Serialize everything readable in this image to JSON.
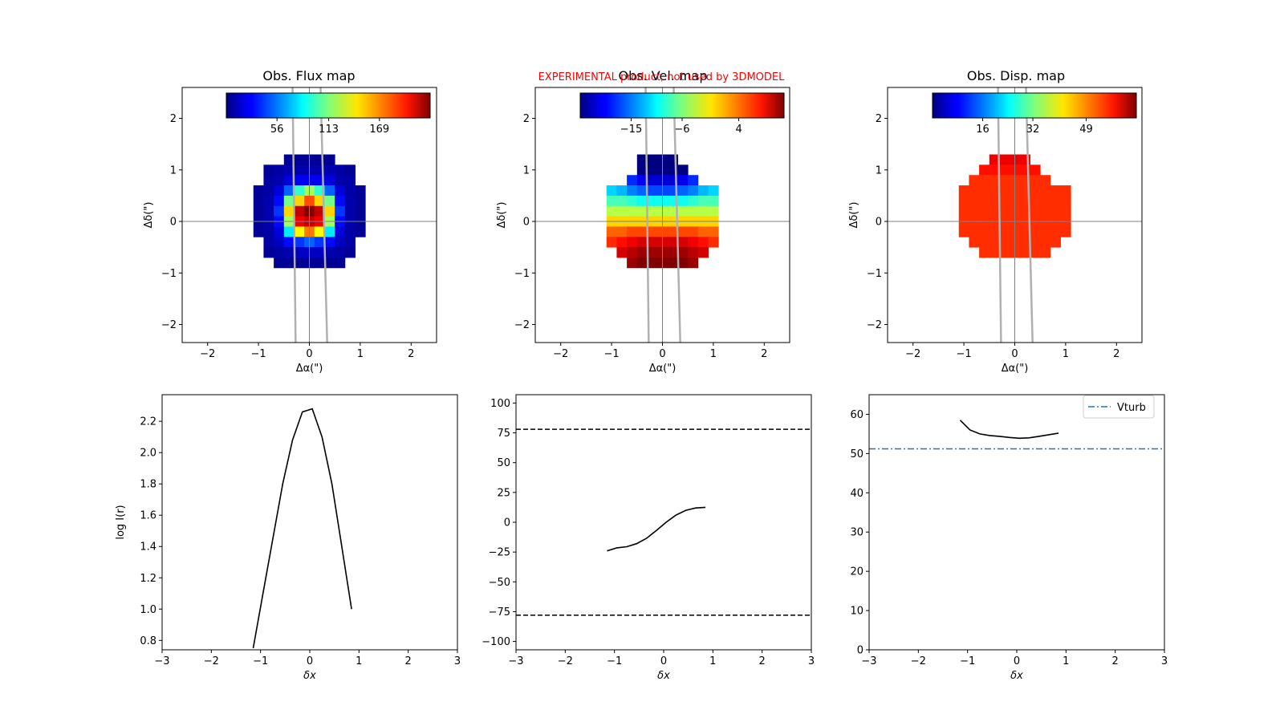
{
  "watermark": {
    "text": "EXPERIMENTAL product, not used by 3DMODEL",
    "color": "#ff0000"
  },
  "colors": {
    "frame": "#000000",
    "line": "#000000",
    "slit": "#b0b0b0",
    "crosshair": "#808080",
    "vturb": "#1f77b4"
  },
  "colormap": "jet",
  "maps": [
    {
      "title": "Obs. Flux map",
      "xlabel": "Δα(\")",
      "ylabel": "Δδ(\")",
      "xticks": [
        "−2",
        "−1",
        "0",
        "1",
        "2"
      ],
      "yticks": [
        "2",
        "1",
        "0",
        "−1",
        "−2"
      ],
      "colorbar_ticks": [
        "56",
        "113",
        "169"
      ],
      "colorbar_range": [
        0,
        225
      ],
      "rows": [
        [
          null,
          null,
          null,
          null,
          null,
          null,
          null,
          null,
          null,
          null,
          null
        ],
        [
          null,
          null,
          null,
          null,
          null,
          null,
          null,
          null,
          null,
          null,
          null
        ],
        [
          null,
          null,
          null,
          null,
          null,
          null,
          null,
          null,
          null,
          null,
          null
        ],
        [
          null,
          null,
          null,
          null,
          null,
          null,
          null,
          null,
          null,
          null,
          null
        ],
        [
          null,
          null,
          null,
          null,
          null,
          null,
          null,
          null,
          null,
          null,
          null
        ],
        [
          null,
          null,
          null,
          null,
          null,
          null,
          null,
          null,
          null,
          null,
          null
        ],
        [
          null,
          null,
          null,
          null,
          null,
          null,
          null,
          null,
          null,
          null,
          null
        ],
        [
          null,
          null,
          null,
          null,
          null,
          null,
          null,
          null,
          null,
          null,
          null
        ],
        [
          null,
          null,
          null,
          null,
          null,
          null,
          null,
          null,
          null,
          null,
          null
        ],
        [
          null,
          null,
          null,
          null,
          null,
          null,
          null,
          null,
          null,
          null,
          null
        ],
        [
          null,
          null,
          null,
          null,
          null,
          null,
          null,
          null,
          null,
          null,
          null
        ],
        [
          null,
          null,
          null,
          null,
          null,
          null,
          null,
          null,
          null,
          null,
          null
        ],
        [
          null,
          null,
          null,
          null,
          null,
          null,
          null,
          null,
          null,
          null,
          null
        ],
        [
          null,
          null,
          null,
          null,
          null,
          null,
          null,
          null,
          null,
          null,
          null
        ],
        [
          null,
          null,
          null,
          null,
          null,
          null,
          null,
          null,
          null,
          null,
          null
        ],
        [
          null,
          null,
          null,
          null,
          null,
          null,
          null,
          null,
          null,
          null,
          null
        ],
        [
          null,
          null,
          null,
          null,
          null,
          null,
          null,
          null,
          null,
          null,
          null
        ],
        [
          null,
          null,
          null,
          null,
          null,
          null,
          null,
          null,
          null,
          null,
          null
        ],
        [
          null,
          null,
          null,
          null,
          null,
          null,
          null,
          null,
          null,
          null,
          null
        ],
        [
          null,
          null,
          null,
          null,
          null,
          null,
          null,
          null,
          null,
          null,
          null
        ],
        [
          null,
          null,
          null,
          null,
          null,
          null,
          null,
          null,
          null,
          null,
          null
        ],
        [
          null,
          null,
          null,
          null,
          null,
          null,
          null,
          null,
          null,
          null,
          null
        ],
        [
          null,
          null,
          null,
          null,
          null,
          null,
          null,
          null,
          null,
          null,
          null
        ],
        [
          null,
          null,
          null,
          null,
          null,
          null,
          null,
          null,
          null,
          null,
          null
        ],
        [
          null,
          null,
          null,
          null,
          null,
          null,
          null,
          null,
          null,
          null,
          null
        ]
      ]
    },
    {
      "title": "Obs. Vel. map",
      "xlabel": "Δα(\")",
      "ylabel": "Δδ(\")",
      "xticks": [
        "−2",
        "−1",
        "0",
        "1",
        "2"
      ],
      "yticks": [
        "2",
        "1",
        "0",
        "−1",
        "−2"
      ],
      "colorbar_ticks": [
        "−15",
        "−6",
        "4"
      ],
      "colorbar_range": [
        -24,
        12
      ],
      "rows": []
    },
    {
      "title": "Obs. Disp. map",
      "xlabel": "Δα(\")",
      "ylabel": "Δδ(\")",
      "xticks": [
        "−2",
        "−1",
        "0",
        "1",
        "2"
      ],
      "yticks": [
        "2",
        "1",
        "0",
        "−1",
        "−2"
      ],
      "colorbar_ticks": [
        "16",
        "32",
        "49"
      ],
      "colorbar_range": [
        0,
        65
      ],
      "rows": []
    }
  ],
  "chart_data": [
    {
      "type": "heatmap",
      "title": "Obs. Flux map",
      "xlabel": "Δα(\")",
      "ylabel": "Δδ(\")",
      "xlim": [
        -2.5,
        2.5
      ],
      "ylim": [
        -2.35,
        2.6
      ],
      "pixel_size": 0.2,
      "dec": [
        1.2,
        1.0,
        0.8,
        0.6,
        0.4,
        0.2,
        0.0,
        -0.2,
        -0.4,
        -0.6,
        -0.8
      ],
      "ra": [
        -1.0,
        -0.8,
        -0.6,
        -0.4,
        -0.2,
        0.0,
        0.2,
        0.4,
        0.6,
        0.8,
        1.0
      ],
      "values": [
        [
          null,
          null,
          null,
          5,
          5,
          5,
          5,
          5,
          null,
          null,
          null
        ],
        [
          null,
          5,
          8,
          10,
          10,
          10,
          10,
          10,
          8,
          5,
          null
        ],
        [
          null,
          8,
          10,
          20,
          25,
          25,
          25,
          20,
          10,
          8,
          null
        ],
        [
          5,
          8,
          20,
          50,
          95,
          120,
          95,
          50,
          20,
          8,
          5
        ],
        [
          5,
          10,
          30,
          110,
          150,
          180,
          150,
          110,
          30,
          10,
          5
        ],
        [
          5,
          10,
          40,
          150,
          210,
          225,
          210,
          150,
          40,
          10,
          5
        ],
        [
          5,
          10,
          30,
          120,
          200,
          210,
          200,
          120,
          30,
          10,
          5
        ],
        [
          5,
          8,
          20,
          80,
          140,
          170,
          140,
          80,
          20,
          8,
          5
        ],
        [
          null,
          8,
          15,
          30,
          40,
          50,
          40,
          30,
          15,
          8,
          null
        ],
        [
          null,
          5,
          8,
          10,
          15,
          15,
          15,
          10,
          8,
          5,
          null
        ],
        [
          null,
          null,
          5,
          5,
          5,
          5,
          5,
          5,
          5,
          null,
          null
        ]
      ],
      "colorbar_ticks": [
        56,
        113,
        169
      ]
    },
    {
      "type": "heatmap",
      "title": "Obs. Vel. map",
      "xlabel": "Δα(\")",
      "ylabel": "Δδ(\")",
      "xlim": [
        -2.5,
        2.5
      ],
      "ylim": [
        -2.35,
        2.6
      ],
      "pixel_size": 0.2,
      "dec": [
        1.2,
        1.0,
        0.8,
        0.6,
        0.4,
        0.2,
        0.0,
        -0.2,
        -0.4,
        -0.6,
        -0.8
      ],
      "ra": [
        -1.0,
        -0.8,
        -0.6,
        -0.4,
        -0.2,
        0.0,
        0.2,
        0.4,
        0.6,
        0.8,
        1.0
      ],
      "values": [
        [
          null,
          null,
          null,
          -24,
          -24,
          -24,
          -24,
          null,
          null,
          null,
          null
        ],
        [
          null,
          null,
          null,
          -24,
          -24,
          -24,
          -24,
          -24,
          null,
          null,
          null
        ],
        [
          null,
          null,
          -18,
          -20,
          -21,
          -21,
          -21,
          -20,
          -18,
          null,
          null
        ],
        [
          -12,
          -13,
          -15,
          -16,
          -17,
          -17,
          -17,
          -16,
          -15,
          -13,
          -12
        ],
        [
          -8,
          -8,
          -9,
          -10,
          -10,
          -10,
          -10,
          -10,
          -9,
          -8,
          -8
        ],
        [
          -4,
          -4,
          -4,
          -4,
          -4,
          -4,
          -4,
          -4,
          -4,
          -4,
          -4
        ],
        [
          0,
          0,
          0,
          0,
          0,
          0,
          0,
          0,
          0,
          0,
          0
        ],
        [
          4,
          4,
          5,
          5,
          5,
          5,
          5,
          5,
          5,
          4,
          4
        ],
        [
          6,
          7,
          8,
          9,
          9,
          9,
          9,
          9,
          8,
          7,
          6
        ],
        [
          null,
          9,
          10,
          11,
          11,
          11,
          11,
          11,
          10,
          9,
          null
        ],
        [
          null,
          null,
          11,
          12,
          12,
          12,
          12,
          12,
          11,
          null,
          null
        ]
      ],
      "colorbar_ticks": [
        -15,
        -6,
        4
      ]
    },
    {
      "type": "heatmap",
      "title": "Obs. Disp. map",
      "xlabel": "Δα(\")",
      "ylabel": "Δδ(\")",
      "xlim": [
        -2.5,
        2.5
      ],
      "ylim": [
        -2.35,
        2.6
      ],
      "pixel_size": 0.2,
      "dec": [
        1.2,
        1.0,
        0.8,
        0.6,
        0.4,
        0.2,
        0.0,
        -0.2,
        -0.4,
        -0.6,
        -0.8
      ],
      "ra": [
        -1.0,
        -0.8,
        -0.6,
        -0.4,
        -0.2,
        0.0,
        0.2,
        0.4,
        0.6,
        0.8,
        1.0
      ],
      "values": [
        [
          null,
          null,
          null,
          58,
          58,
          58,
          58,
          null,
          null,
          null,
          null
        ],
        [
          null,
          null,
          56,
          56,
          56,
          56,
          56,
          56,
          null,
          null,
          null
        ],
        [
          null,
          54,
          54,
          54,
          54,
          54,
          54,
          54,
          54,
          null,
          null
        ],
        [
          54,
          54,
          54,
          54,
          54,
          54,
          54,
          54,
          54,
          54,
          54
        ],
        [
          54,
          54,
          54,
          54,
          54,
          54,
          54,
          54,
          54,
          54,
          54
        ],
        [
          54,
          54,
          54,
          54,
          54,
          54,
          54,
          54,
          54,
          54,
          54
        ],
        [
          54,
          54,
          54,
          54,
          54,
          54,
          54,
          54,
          54,
          54,
          54
        ],
        [
          54,
          54,
          54,
          54,
          54,
          54,
          54,
          54,
          54,
          54,
          54
        ],
        [
          null,
          54,
          54,
          54,
          54,
          54,
          54,
          54,
          54,
          54,
          null
        ],
        [
          null,
          null,
          54,
          54,
          54,
          54,
          54,
          54,
          54,
          null,
          null
        ],
        [
          null,
          null,
          null,
          null,
          null,
          null,
          null,
          null,
          null,
          null,
          null
        ]
      ],
      "colorbar_ticks": [
        16,
        32,
        49
      ]
    },
    {
      "type": "line",
      "title": "",
      "xlabel": "δx",
      "ylabel": "log I(r)",
      "xlim": [
        -3,
        3
      ],
      "ylim": [
        0.74,
        2.37
      ],
      "xticks": [
        "−3",
        "−2",
        "−1",
        "0",
        "1",
        "2",
        "3"
      ],
      "yticks": [
        "0.8",
        "1.0",
        "1.2",
        "1.4",
        "1.6",
        "1.8",
        "2.0",
        "2.2"
      ],
      "x": [
        -1.15,
        -0.95,
        -0.75,
        -0.55,
        -0.35,
        -0.15,
        0.05,
        0.25,
        0.45,
        0.65,
        0.85
      ],
      "y": [
        0.75,
        1.1,
        1.45,
        1.8,
        2.08,
        2.26,
        2.28,
        2.1,
        1.8,
        1.4,
        1.0
      ]
    },
    {
      "type": "line",
      "title": "",
      "xlabel": "δx",
      "ylabel": "",
      "xlim": [
        -3,
        3
      ],
      "ylim": [
        -107,
        107
      ],
      "xticks": [
        "−3",
        "−2",
        "−1",
        "0",
        "1",
        "2",
        "3"
      ],
      "yticks": [
        "100",
        "75",
        "50",
        "25",
        "0",
        "−25",
        "−50",
        "−75",
        "−100"
      ],
      "x": [
        -1.15,
        -0.95,
        -0.75,
        -0.55,
        -0.35,
        -0.15,
        0.05,
        0.25,
        0.45,
        0.65,
        0.85
      ],
      "y": [
        -24,
        -21.5,
        -20.5,
        -18,
        -13.5,
        -7,
        0,
        6,
        10,
        12,
        12.5
      ],
      "hlines": [
        78,
        -78
      ]
    },
    {
      "type": "line",
      "title": "",
      "xlabel": "δx",
      "ylabel": "",
      "xlim": [
        -3,
        3
      ],
      "ylim": [
        0,
        65
      ],
      "xticks": [
        "−3",
        "−2",
        "−1",
        "0",
        "1",
        "2",
        "3"
      ],
      "yticks": [
        "60",
        "50",
        "40",
        "30",
        "20",
        "10",
        "0"
      ],
      "x": [
        -1.15,
        -0.95,
        -0.75,
        -0.55,
        -0.35,
        -0.15,
        0.05,
        0.25,
        0.45,
        0.65,
        0.85
      ],
      "y": [
        58.5,
        56,
        55,
        54.6,
        54.4,
        54.1,
        53.9,
        54,
        54.4,
        54.8,
        55.2
      ],
      "vturb": 51.2,
      "legend": [
        "Vturb"
      ],
      "legend_loc": "upper right"
    }
  ],
  "bottom_panels": [
    {
      "xlabel": "δx",
      "ylabel": "log I(r)",
      "xticks": [
        "−3",
        "−2",
        "−1",
        "0",
        "1",
        "2",
        "3"
      ],
      "yticks": [
        "0.8",
        "1.0",
        "1.2",
        "1.4",
        "1.6",
        "1.8",
        "2.0",
        "2.2"
      ]
    },
    {
      "xlabel": "δx",
      "ylabel": "",
      "xticks": [
        "−3",
        "−2",
        "−1",
        "0",
        "1",
        "2",
        "3"
      ],
      "yticks": [
        "100",
        "75",
        "50",
        "25",
        "0",
        "−25",
        "−50",
        "−75",
        "−100"
      ]
    },
    {
      "xlabel": "δx",
      "ylabel": "",
      "xticks": [
        "−3",
        "−2",
        "−1",
        "0",
        "1",
        "2",
        "3"
      ],
      "yticks": [
        "60",
        "50",
        "40",
        "30",
        "20",
        "10",
        "0"
      ],
      "legend_label": "Vturb"
    }
  ]
}
